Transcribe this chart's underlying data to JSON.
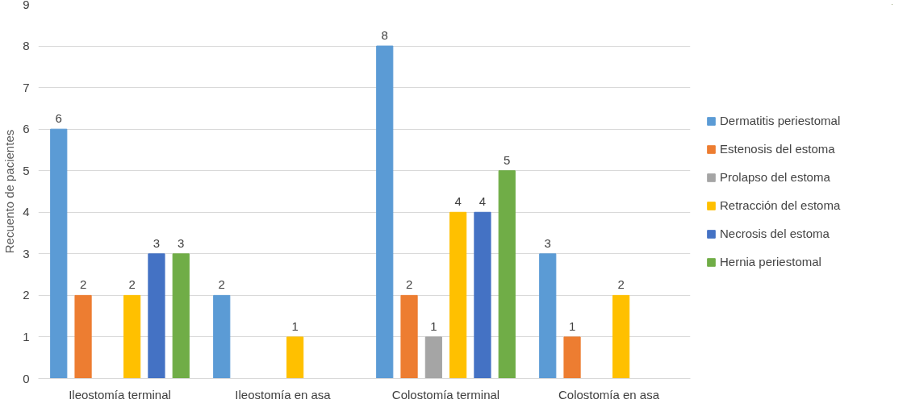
{
  "chart_data": {
    "type": "bar",
    "ylabel": "Recuento de pacientes",
    "categories": [
      "Ileostomía terminal",
      "Ileostomía en asa",
      "Colostomía terminal",
      "Colostomía en asa"
    ],
    "series": [
      {
        "name": "Dermatitis periestomal",
        "color": "#5b9bd5",
        "values": [
          6,
          2,
          8,
          3
        ]
      },
      {
        "name": "Estenosis del estoma",
        "color": "#ed7d31",
        "values": [
          2,
          null,
          2,
          1
        ]
      },
      {
        "name": "Prolapso del estoma",
        "color": "#a5a5a5",
        "values": [
          null,
          null,
          1,
          null
        ]
      },
      {
        "name": "Retracción del estoma",
        "color": "#ffc000",
        "values": [
          2,
          1,
          4,
          2
        ]
      },
      {
        "name": "Necrosis del estoma",
        "color": "#4472c4",
        "values": [
          3,
          null,
          4,
          null
        ]
      },
      {
        "name": "Hernia periestomal",
        "color": "#70ad47",
        "values": [
          3,
          null,
          5,
          null
        ]
      }
    ],
    "ylim": [
      0,
      9
    ],
    "yticks": [
      0,
      1,
      2,
      3,
      4,
      5,
      6,
      7,
      8,
      9
    ],
    "grid": "y",
    "legend": "right",
    "data_labels": true
  }
}
